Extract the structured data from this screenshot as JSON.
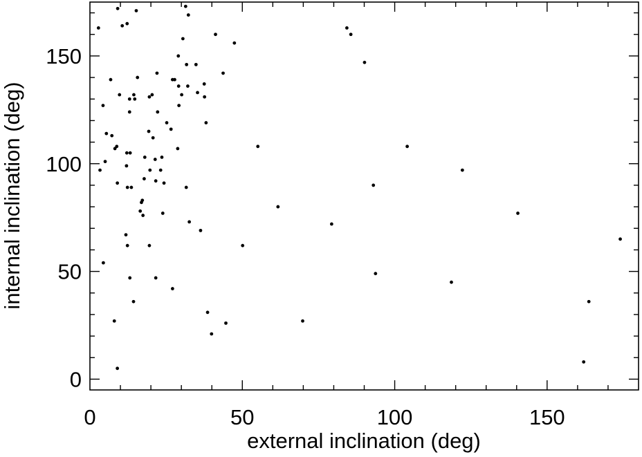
{
  "chart_data": {
    "type": "scatter",
    "title": "",
    "xlabel": "external inclination (deg)",
    "ylabel": "internal inclination (deg)",
    "xlim": [
      0,
      180
    ],
    "ylim": [
      -5,
      175
    ],
    "xticks": [
      0,
      50,
      100,
      150
    ],
    "yticks": [
      0,
      50,
      100,
      150
    ],
    "grid": false,
    "legend": "none",
    "marker_color": "#000000",
    "series": [
      {
        "points": [
          [
            2.8,
            163
          ],
          [
            9.1,
            172
          ],
          [
            10.6,
            164
          ],
          [
            12.2,
            165
          ],
          [
            15.2,
            171
          ],
          [
            31.4,
            173
          ],
          [
            32.3,
            169
          ],
          [
            41.2,
            160
          ],
          [
            47.4,
            156
          ],
          [
            30.5,
            158
          ],
          [
            84.3,
            163
          ],
          [
            85.6,
            160
          ],
          [
            90.1,
            147
          ],
          [
            29.0,
            150
          ],
          [
            31.7,
            146
          ],
          [
            34.8,
            146
          ],
          [
            43.7,
            142
          ],
          [
            22.0,
            142
          ],
          [
            6.8,
            139
          ],
          [
            15.6,
            140
          ],
          [
            27.1,
            139
          ],
          [
            27.8,
            139
          ],
          [
            37.5,
            137
          ],
          [
            29.1,
            136
          ],
          [
            32.1,
            136
          ],
          [
            35.3,
            133
          ],
          [
            30.1,
            132
          ],
          [
            37.6,
            131
          ],
          [
            9.7,
            132
          ],
          [
            14.4,
            132
          ],
          [
            20.4,
            132
          ],
          [
            13.0,
            130
          ],
          [
            14.7,
            130
          ],
          [
            19.5,
            131
          ],
          [
            4.3,
            127
          ],
          [
            13.0,
            124
          ],
          [
            22.2,
            124
          ],
          [
            29.2,
            127
          ],
          [
            25.2,
            119
          ],
          [
            38.1,
            119
          ],
          [
            5.4,
            114
          ],
          [
            7.2,
            113
          ],
          [
            19.3,
            115
          ],
          [
            26.6,
            116
          ],
          [
            20.7,
            112
          ],
          [
            8.2,
            107
          ],
          [
            8.8,
            108
          ],
          [
            55.1,
            108
          ],
          [
            104.1,
            108
          ],
          [
            12.1,
            105
          ],
          [
            13.2,
            105
          ],
          [
            28.8,
            107
          ],
          [
            5.0,
            101
          ],
          [
            18.0,
            103
          ],
          [
            21.4,
            102
          ],
          [
            23.6,
            103
          ],
          [
            3.3,
            97
          ],
          [
            12.0,
            99
          ],
          [
            19.7,
            97
          ],
          [
            23.2,
            97
          ],
          [
            122.2,
            97
          ],
          [
            17.8,
            93
          ],
          [
            21.6,
            92
          ],
          [
            24.3,
            91
          ],
          [
            9.0,
            91
          ],
          [
            12.3,
            89
          ],
          [
            13.6,
            89
          ],
          [
            31.6,
            89
          ],
          [
            93.0,
            90
          ],
          [
            17.2,
            83
          ],
          [
            16.9,
            82
          ],
          [
            61.7,
            80
          ],
          [
            16.5,
            78
          ],
          [
            17.4,
            76
          ],
          [
            23.9,
            77
          ],
          [
            140.4,
            77
          ],
          [
            32.6,
            73
          ],
          [
            79.3,
            72
          ],
          [
            36.3,
            69
          ],
          [
            11.8,
            67
          ],
          [
            12.3,
            62
          ],
          [
            19.5,
            62
          ],
          [
            50.1,
            62
          ],
          [
            174.0,
            65
          ],
          [
            4.4,
            54
          ],
          [
            13.1,
            47
          ],
          [
            21.6,
            47
          ],
          [
            93.7,
            49
          ],
          [
            118.6,
            45
          ],
          [
            27.1,
            42
          ],
          [
            14.3,
            36
          ],
          [
            163.7,
            36
          ],
          [
            8.0,
            27
          ],
          [
            38.6,
            31
          ],
          [
            44.6,
            26
          ],
          [
            69.8,
            27
          ],
          [
            39.9,
            21
          ],
          [
            9.0,
            5
          ],
          [
            162.0,
            8
          ]
        ]
      }
    ]
  }
}
